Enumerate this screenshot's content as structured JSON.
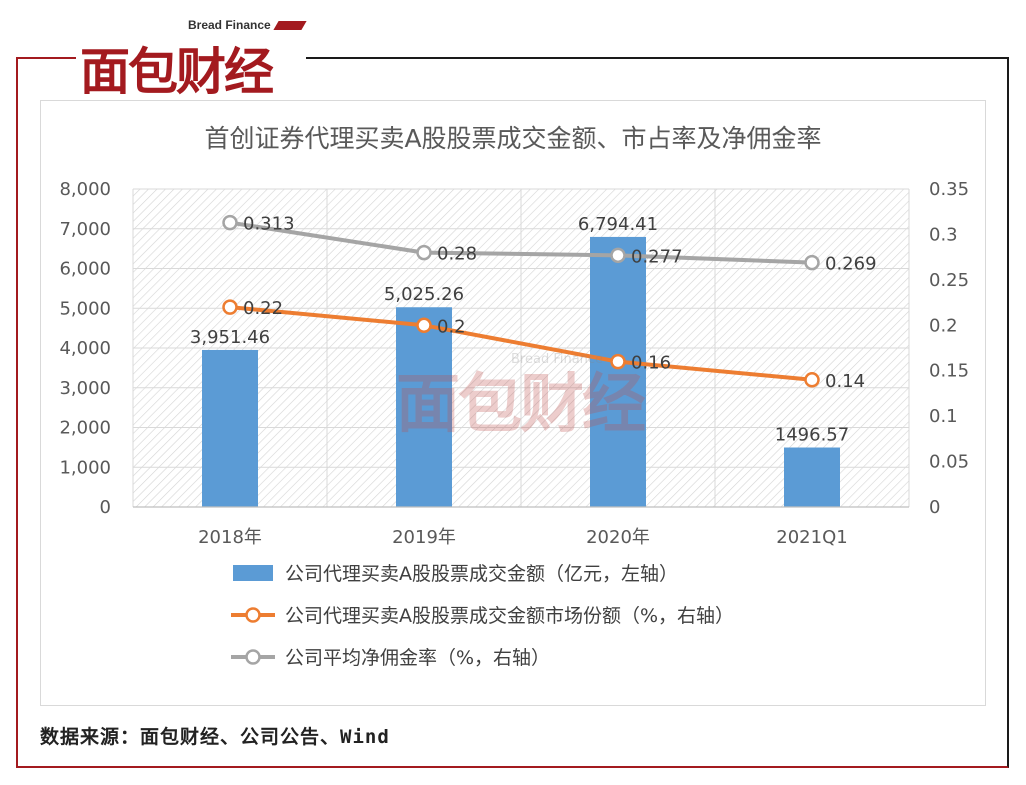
{
  "header": {
    "logo_en": "Bread Finance",
    "logo_cn": "面包财经"
  },
  "watermark": {
    "en": "Bread Finance",
    "cn": "面包财经"
  },
  "source": "数据来源：面包财经、公司公告、Wind",
  "colors": {
    "bar": "#5b9bd5",
    "market_share": "#ed7d31",
    "commission": "#a5a5a5",
    "brand_red": "#a31a1f"
  },
  "chart_data": {
    "type": "bar",
    "title": "首创证券代理买卖A股股票成交金额、市占率及净佣金率",
    "categories": [
      "2018年",
      "2019年",
      "2020年",
      "2021Q1"
    ],
    "y_left": {
      "ylim": [
        0,
        8000
      ],
      "ticks": [
        "0",
        "1,000",
        "2,000",
        "3,000",
        "4,000",
        "5,000",
        "6,000",
        "7,000",
        "8,000"
      ]
    },
    "y_right": {
      "ylim": [
        0,
        0.35
      ],
      "ticks": [
        "0",
        "0.05",
        "0.1",
        "0.15",
        "0.2",
        "0.25",
        "0.3",
        "0.35"
      ]
    },
    "grid": true,
    "legend_position": "bottom",
    "series": [
      {
        "name": "公司代理买卖A股股票成交金额（亿元，左轴）",
        "type": "bar",
        "axis": "left",
        "values": [
          3951.46,
          5025.26,
          6794.41,
          1496.57
        ],
        "labels": [
          "3,951.46",
          "5,025.26",
          "6,794.41",
          "1496.57"
        ]
      },
      {
        "name": "公司代理买卖A股股票成交金额市场份额（%，右轴）",
        "type": "line",
        "axis": "right",
        "values": [
          0.22,
          0.2,
          0.16,
          0.14
        ],
        "labels": [
          "0.22",
          "0.2",
          "0.16",
          "0.14"
        ]
      },
      {
        "name": "公司平均净佣金率（%，右轴）",
        "type": "line",
        "axis": "right",
        "values": [
          0.313,
          0.28,
          0.277,
          0.269
        ],
        "labels": [
          "0.313",
          "0.28",
          "0.277",
          "0.269"
        ]
      }
    ]
  }
}
